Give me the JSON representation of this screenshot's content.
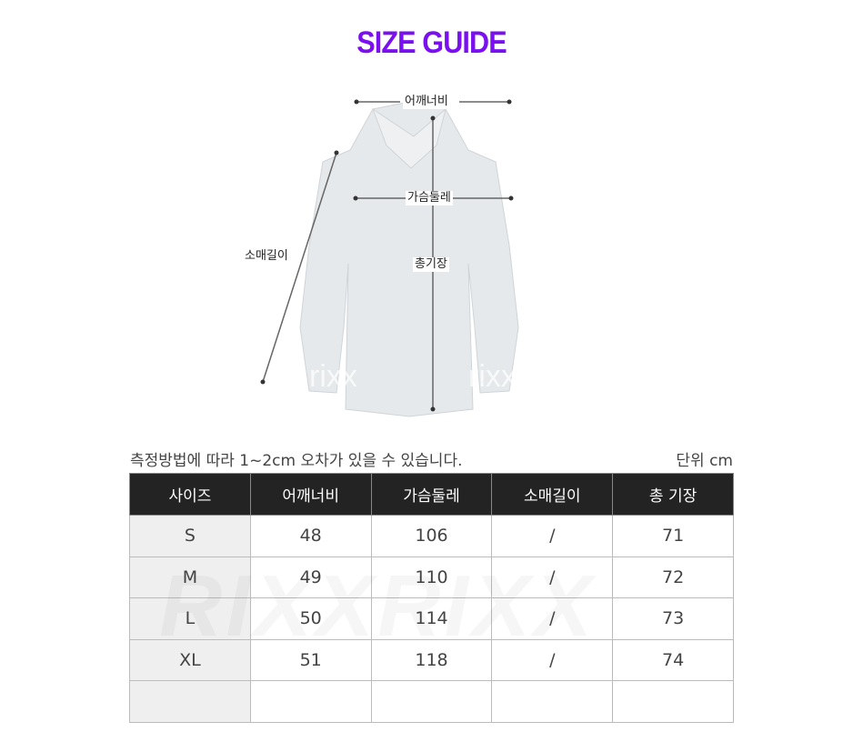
{
  "title": "SIZE GUIDE",
  "diagram": {
    "shoulder": "어깨너비",
    "chest": "가슴둘레",
    "sleeve": "소매길이",
    "length": "총기장",
    "watermark": "rixx"
  },
  "note": "측정방법에 따라 1~2cm 오차가 있을 수 있습니다.",
  "unit": "단위 cm",
  "table": {
    "headers": [
      "사이즈",
      "어깨너비",
      "가슴둘레",
      "소매길이",
      "총 기장"
    ],
    "rows": [
      [
        "S",
        "48",
        "106",
        "/",
        "71"
      ],
      [
        "M",
        "49",
        "110",
        "/",
        "72"
      ],
      [
        "L",
        "50",
        "114",
        "/",
        "73"
      ],
      [
        "XL",
        "51",
        "118",
        "/",
        "74"
      ],
      [
        "",
        "",
        "",
        "",
        ""
      ]
    ]
  },
  "table_watermark": "RIXXRIXX",
  "colors": {
    "title": "#7a10f0",
    "header_bg": "#232323"
  }
}
